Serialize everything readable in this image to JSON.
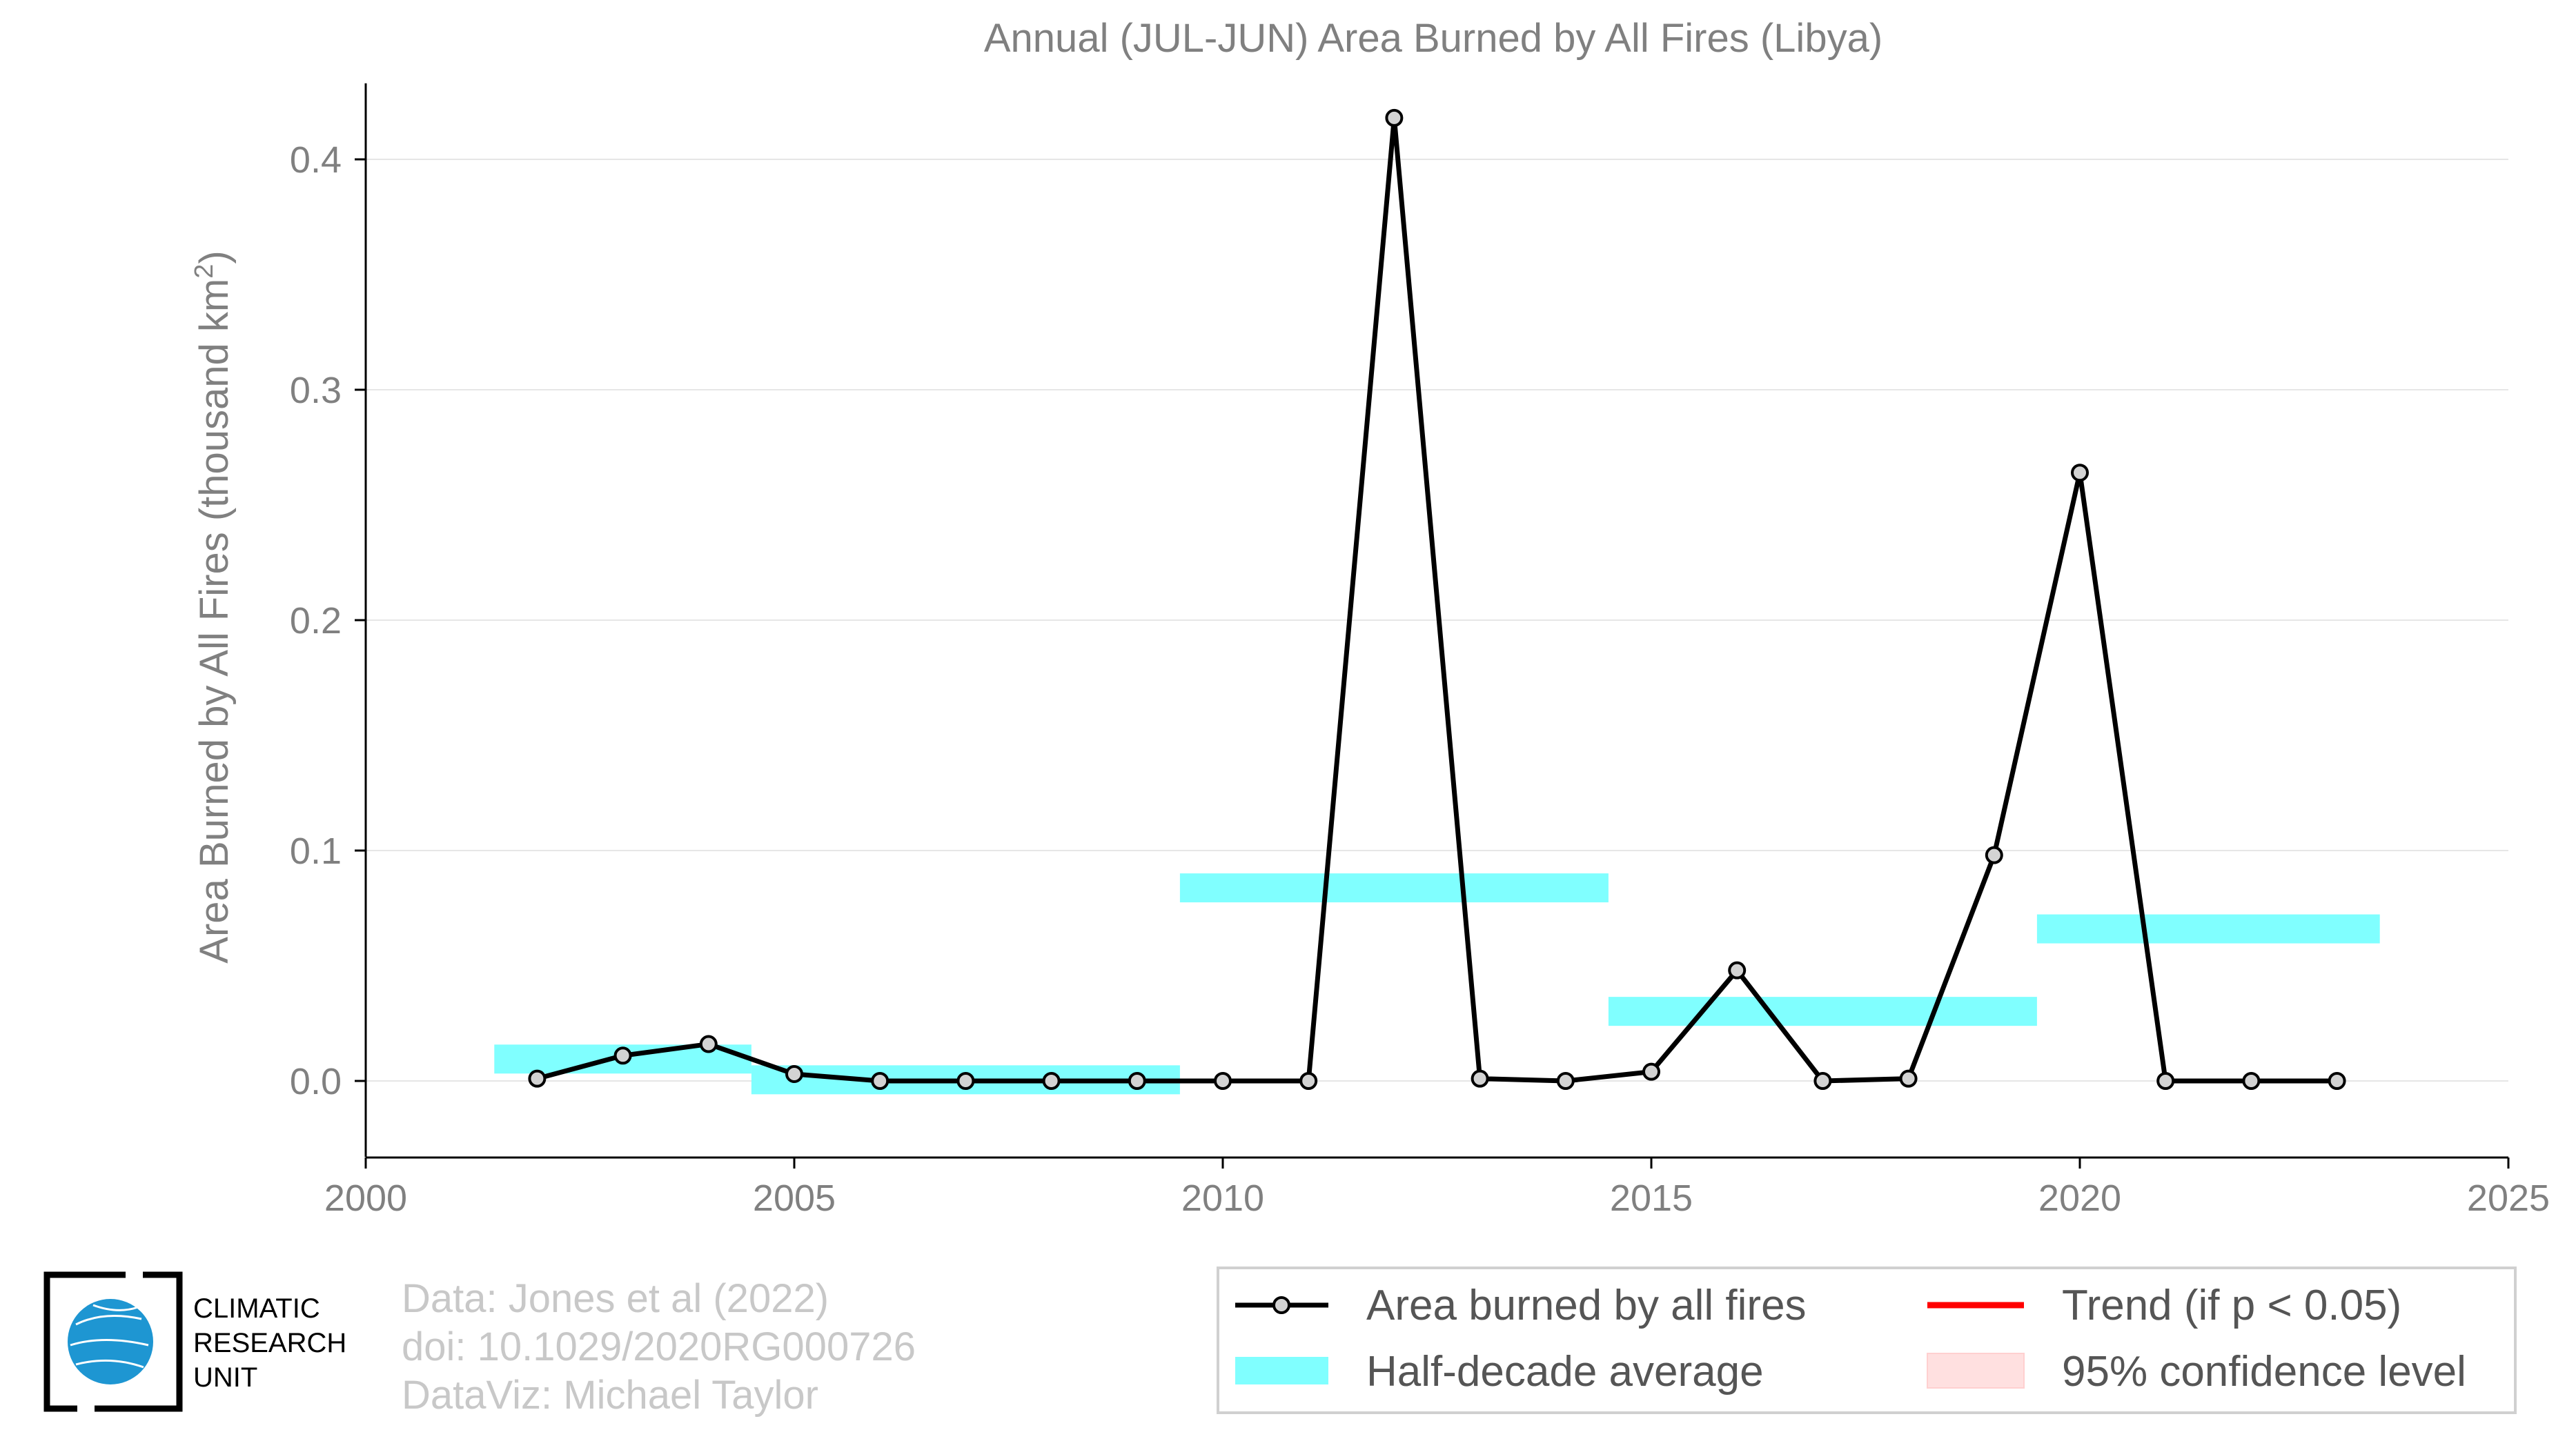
{
  "chart_data": {
    "type": "line",
    "title": "Annual (JUL-JUN) Area Burned by All Fires (Libya)",
    "ylabel": "Area Burned by All Fires (thousand km",
    "ylabel_sup": "2",
    "ylabel_end": ")",
    "xlim": [
      2000,
      2025
    ],
    "ylim": [
      -0.033,
      0.433
    ],
    "xticks": [
      2000,
      2005,
      2010,
      2015,
      2020,
      2025
    ],
    "xtick_labels": [
      "2000",
      "2005",
      "2010",
      "2015",
      "2020",
      "2025"
    ],
    "yticks": [
      0.0,
      0.1,
      0.2,
      0.3,
      0.4
    ],
    "ytick_labels": [
      "0.0",
      "0.1",
      "0.2",
      "0.3",
      "0.4"
    ],
    "grid": "horizontal",
    "legend_position": "bottom-right",
    "series": [
      {
        "name": "Area burned by all fires",
        "color": "#000000",
        "marker_fill": "#d3d3d3",
        "x": [
          2002,
          2003,
          2004,
          2005,
          2006,
          2007,
          2008,
          2009,
          2010,
          2011,
          2012,
          2013,
          2014,
          2015,
          2016,
          2017,
          2018,
          2019,
          2020,
          2021,
          2022,
          2023
        ],
        "y": [
          0.001,
          0.011,
          0.016,
          0.003,
          0.0,
          0.0,
          0.0,
          0.0,
          0.0,
          0.0,
          0.418,
          0.001,
          0.0,
          0.004,
          0.048,
          0.0,
          0.001,
          0.098,
          0.264,
          0.0,
          0.0,
          0.0
        ]
      }
    ],
    "half_decade_average": {
      "name": "Half-decade average",
      "color": "#80ffff",
      "segments": [
        {
          "x0": 2001.5,
          "x1": 2004.5,
          "y": 0.0095
        },
        {
          "x0": 2004.5,
          "x1": 2009.5,
          "y": 0.0005
        },
        {
          "x0": 2009.5,
          "x1": 2014.5,
          "y": 0.0838
        },
        {
          "x0": 2014.5,
          "x1": 2019.5,
          "y": 0.0302
        },
        {
          "x0": 2019.5,
          "x1": 2023.5,
          "y": 0.066
        }
      ]
    },
    "legend": [
      {
        "label": "Area burned by all fires",
        "kind": "line-marker",
        "color": "#000000"
      },
      {
        "label": "Half-decade average",
        "kind": "band",
        "color": "#80ffff"
      },
      {
        "label": "Trend (if p < 0.05)",
        "kind": "line",
        "color": "#ff0000"
      },
      {
        "label": "95% confidence level",
        "kind": "patch",
        "color": "#ffe0e0"
      }
    ]
  },
  "credits": {
    "line1": "Data: Jones et al (2022)",
    "line2": "doi: 10.1029/2020RG000726",
    "line3": "DataViz: Michael Taylor"
  },
  "logo": {
    "line1": "CLIMATIC",
    "line2": "RESEARCH",
    "line3": "UNIT",
    "globe_color": "#1e96d2"
  }
}
